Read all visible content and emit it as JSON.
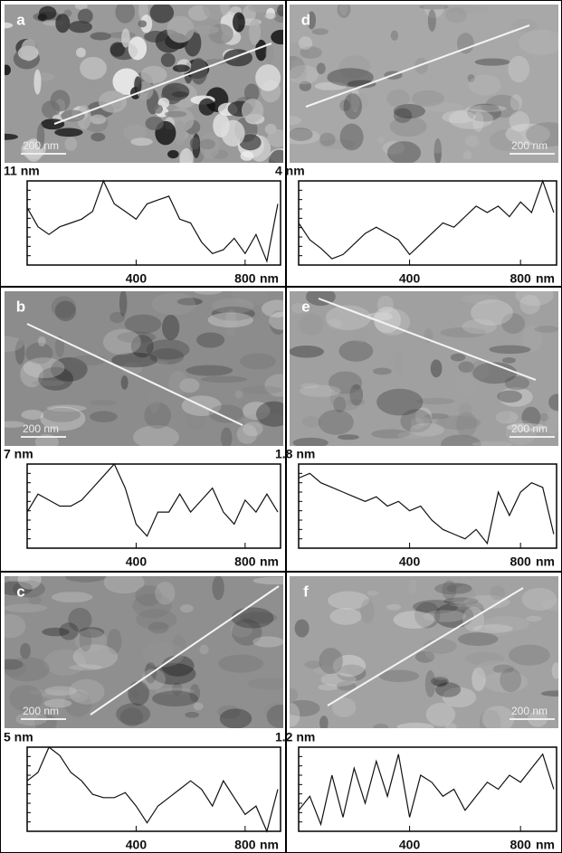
{
  "images": [
    {
      "label": "a",
      "scale_bar": "200 nm"
    },
    {
      "label": "d",
      "scale_bar": "200 nm"
    },
    {
      "label": "b",
      "scale_bar": "200 nm"
    },
    {
      "label": "e",
      "scale_bar": "200 nm"
    },
    {
      "label": "c",
      "scale_bar": "200 nm"
    },
    {
      "label": "f",
      "scale_bar": "200 nm"
    }
  ],
  "chart_data": [
    {
      "type": "line",
      "y_label": "11 nm",
      "x_label": "nm",
      "color": "#111",
      "x": [
        0,
        40,
        80,
        120,
        160,
        200,
        240,
        280,
        320,
        360,
        400,
        440,
        480,
        520,
        560,
        600,
        640,
        680,
        720,
        760,
        800,
        840,
        880,
        920
      ],
      "values": [
        7.5,
        5,
        4,
        5,
        5.5,
        6,
        7,
        11,
        8,
        7,
        6,
        8,
        8.5,
        9,
        6,
        5.5,
        3,
        1.5,
        2,
        3.5,
        1.5,
        4,
        0.5,
        8
      ],
      "xlim": [
        0,
        930
      ],
      "ylim": [
        0,
        11
      ],
      "xticks": [
        400,
        800
      ]
    },
    {
      "type": "line",
      "y_label": "4 nm",
      "x_label": "nm",
      "color": "#111",
      "x": [
        0,
        40,
        80,
        120,
        160,
        200,
        240,
        280,
        320,
        360,
        400,
        440,
        480,
        520,
        560,
        600,
        640,
        680,
        720,
        760,
        800,
        840,
        880,
        920
      ],
      "values": [
        2,
        1.2,
        0.8,
        0.3,
        0.5,
        1,
        1.5,
        1.8,
        1.5,
        1.2,
        0.5,
        1,
        1.5,
        2,
        1.8,
        2.3,
        2.8,
        2.5,
        2.8,
        2.3,
        3,
        2.5,
        4,
        2.5
      ],
      "xlim": [
        0,
        930
      ],
      "ylim": [
        0,
        4
      ],
      "xticks": [
        400,
        800
      ]
    },
    {
      "type": "line",
      "y_label": "7 nm",
      "x_label": "nm",
      "color": "#111",
      "x": [
        0,
        40,
        80,
        120,
        160,
        200,
        240,
        280,
        320,
        360,
        400,
        440,
        480,
        520,
        560,
        600,
        640,
        680,
        720,
        760,
        800,
        840,
        880,
        920
      ],
      "values": [
        3,
        4.5,
        4,
        3.5,
        3.5,
        4,
        5,
        6,
        7,
        5,
        2,
        1,
        3,
        3,
        4.5,
        3,
        4,
        5,
        3,
        2,
        4,
        3,
        4.5,
        3
      ],
      "xlim": [
        0,
        930
      ],
      "ylim": [
        0,
        7
      ],
      "xticks": [
        400,
        800
      ]
    },
    {
      "type": "line",
      "y_label": "1.8 nm",
      "x_label": "nm",
      "color": "#111",
      "x": [
        0,
        40,
        80,
        120,
        160,
        200,
        240,
        280,
        320,
        360,
        400,
        440,
        480,
        520,
        560,
        600,
        640,
        680,
        720,
        760,
        800,
        840,
        880,
        920
      ],
      "values": [
        1.5,
        1.6,
        1.4,
        1.3,
        1.2,
        1.1,
        1.0,
        1.1,
        0.9,
        1.0,
        0.8,
        0.9,
        0.6,
        0.4,
        0.3,
        0.2,
        0.4,
        0.1,
        1.2,
        0.7,
        1.2,
        1.4,
        1.3,
        0.3
      ],
      "xlim": [
        0,
        930
      ],
      "ylim": [
        0,
        1.8
      ],
      "xticks": [
        400,
        800
      ]
    },
    {
      "type": "line",
      "y_label": "5 nm",
      "x_label": "nm",
      "color": "#111",
      "x": [
        0,
        40,
        80,
        120,
        160,
        200,
        240,
        280,
        320,
        360,
        400,
        440,
        480,
        520,
        560,
        600,
        640,
        680,
        720,
        760,
        800,
        840,
        880,
        920
      ],
      "values": [
        3,
        3.5,
        5,
        4.5,
        3.5,
        3,
        2.2,
        2,
        2,
        2.3,
        1.5,
        0.5,
        1.5,
        2,
        2.5,
        3,
        2.5,
        1.5,
        3,
        2,
        1,
        1.5,
        0,
        2.5
      ],
      "xlim": [
        0,
        930
      ],
      "ylim": [
        0,
        5
      ],
      "xticks": [
        400,
        800
      ]
    },
    {
      "type": "line",
      "y_label": "1.2 nm",
      "x_label": "nm",
      "color": "#111",
      "x": [
        0,
        40,
        80,
        120,
        160,
        200,
        240,
        280,
        320,
        360,
        400,
        440,
        480,
        520,
        560,
        600,
        640,
        680,
        720,
        760,
        800,
        840,
        880,
        920
      ],
      "values": [
        0.3,
        0.5,
        0.1,
        0.8,
        0.2,
        0.9,
        0.4,
        1,
        0.5,
        1.1,
        0.2,
        0.8,
        0.7,
        0.5,
        0.6,
        0.3,
        0.5,
        0.7,
        0.6,
        0.8,
        0.7,
        0.9,
        1.1,
        0.6
      ],
      "xlim": [
        0,
        930
      ],
      "ylim": [
        0,
        1.2
      ],
      "xticks": [
        400,
        800
      ]
    }
  ]
}
